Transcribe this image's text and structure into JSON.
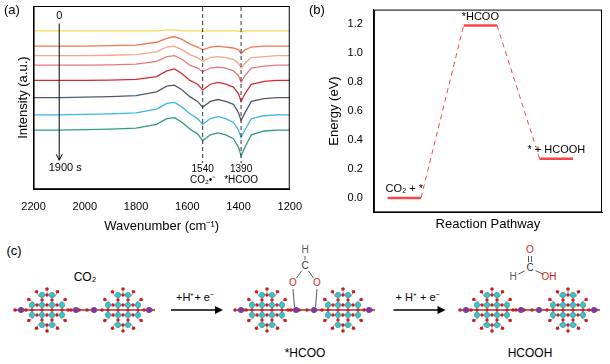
{
  "chart_data": [
    {
      "type": "line",
      "title": "(a)",
      "x_label": "Wavenumber (cm⁻¹)",
      "y_label": "Intensity (a.u.)",
      "x": [
        2200,
        2100,
        2000,
        1900,
        1800,
        1720,
        1680,
        1650,
        1620,
        1590,
        1560,
        1540,
        1510,
        1480,
        1450,
        1420,
        1400,
        1390,
        1375,
        1350,
        1300,
        1250,
        1200
      ],
      "series": [
        {
          "color": "#f5dc5a",
          "values": [
            8.3,
            8.3,
            8.3,
            8.3,
            8.3,
            8.3,
            8.35,
            8.35,
            8.3,
            8.3,
            8.3,
            8.28,
            8.3,
            8.3,
            8.3,
            8.3,
            8.28,
            8.25,
            8.28,
            8.3,
            8.3,
            8.3,
            8.3
          ]
        },
        {
          "color": "#f07850",
          "values": [
            7.5,
            7.5,
            7.5,
            7.52,
            7.55,
            7.7,
            7.9,
            8.0,
            7.85,
            7.6,
            7.45,
            7.3,
            7.45,
            7.5,
            7.45,
            7.4,
            7.3,
            7.1,
            7.3,
            7.45,
            7.5,
            7.5,
            7.5
          ]
        },
        {
          "color": "#f4a58a",
          "values": [
            7.0,
            7.0,
            7.0,
            7.02,
            7.05,
            7.2,
            7.45,
            7.5,
            7.3,
            7.05,
            6.9,
            6.7,
            6.9,
            6.95,
            6.9,
            6.8,
            6.6,
            6.35,
            6.6,
            6.9,
            6.95,
            7.0,
            7.0
          ]
        },
        {
          "color": "#e87878",
          "values": [
            6.5,
            6.5,
            6.5,
            6.52,
            6.55,
            6.7,
            6.95,
            7.0,
            6.8,
            6.5,
            6.35,
            6.15,
            6.35,
            6.4,
            6.35,
            6.2,
            5.95,
            5.6,
            5.95,
            6.35,
            6.45,
            6.5,
            6.5
          ]
        },
        {
          "color": "#d42c2c",
          "values": [
            5.7,
            5.7,
            5.7,
            5.72,
            5.75,
            5.9,
            6.2,
            6.3,
            6.05,
            5.7,
            5.5,
            5.2,
            5.5,
            5.6,
            5.5,
            5.35,
            5.0,
            4.6,
            5.0,
            5.5,
            5.65,
            5.7,
            5.7
          ]
        },
        {
          "color": "#505a6e",
          "values": [
            4.8,
            4.8,
            4.82,
            4.85,
            4.9,
            5.1,
            5.4,
            5.45,
            5.2,
            4.85,
            4.6,
            4.3,
            4.6,
            4.7,
            4.6,
            4.45,
            4.0,
            3.6,
            4.0,
            4.6,
            4.75,
            4.8,
            4.8
          ]
        },
        {
          "color": "#3cb4e6",
          "values": [
            3.9,
            3.9,
            3.92,
            3.95,
            4.0,
            4.2,
            4.5,
            4.55,
            4.3,
            3.95,
            3.7,
            3.4,
            3.7,
            3.8,
            3.7,
            3.5,
            3.1,
            2.7,
            3.1,
            3.7,
            3.85,
            3.9,
            3.9
          ]
        },
        {
          "color": "#2e9e6e",
          "values": [
            3.1,
            3.1,
            3.12,
            3.15,
            3.2,
            3.4,
            3.7,
            3.75,
            3.5,
            3.15,
            2.9,
            2.55,
            2.85,
            2.95,
            2.85,
            2.65,
            2.2,
            1.75,
            2.2,
            2.85,
            3.05,
            3.1,
            3.1
          ]
        }
      ],
      "xlim": [
        2200,
        1200
      ],
      "xticks": [
        2200,
        2000,
        1800,
        1600,
        1400,
        1200
      ],
      "ylim": [
        0,
        9.6
      ],
      "tick_labels": "x",
      "grid": false,
      "markers": [
        {
          "x": 1540,
          "labels": [
            "1540",
            "CO₂•⁻"
          ]
        },
        {
          "x": 1390,
          "labels": [
            "1390",
            "*HCOO"
          ]
        }
      ],
      "time_arrow": {
        "x": 2100,
        "from": {
          "y": 9.1,
          "label": "0"
        },
        "to": {
          "y": 1.1,
          "label": "1900 s"
        }
      }
    },
    {
      "type": "energy_diagram",
      "title": "(b)",
      "x_label": "Reaction Pathway",
      "y_label": "Energy (eV)",
      "categories": [
        "CO₂ + *",
        "*HCOO",
        "* + HCOOH"
      ],
      "values": [
        0,
        1.19,
        0.27
      ],
      "color": "#f04848",
      "line_style": "dashed",
      "ylim": [
        -0.1,
        1.3
      ],
      "yticks": [
        {
          "value": 0,
          "label": "0.0"
        },
        0.2,
        0.4,
        0.6,
        0.8,
        {
          "value": 1,
          "label": "1.0"
        },
        1.2
      ],
      "tick_labels": "y",
      "grid": false
    }
  ],
  "diagram": {
    "title": "(c)",
    "states": [
      {
        "label": "CO₂"
      },
      {
        "atoms": [
          "H",
          "C",
          "O",
          "O"
        ],
        "caption": "*HCOO"
      },
      {
        "atoms": [
          "O",
          "C",
          "H",
          "OH"
        ],
        "caption": "HCOOH"
      }
    ],
    "steps": [
      "+H⁺+ e⁻",
      "+ H⁺ + e⁻"
    ]
  }
}
